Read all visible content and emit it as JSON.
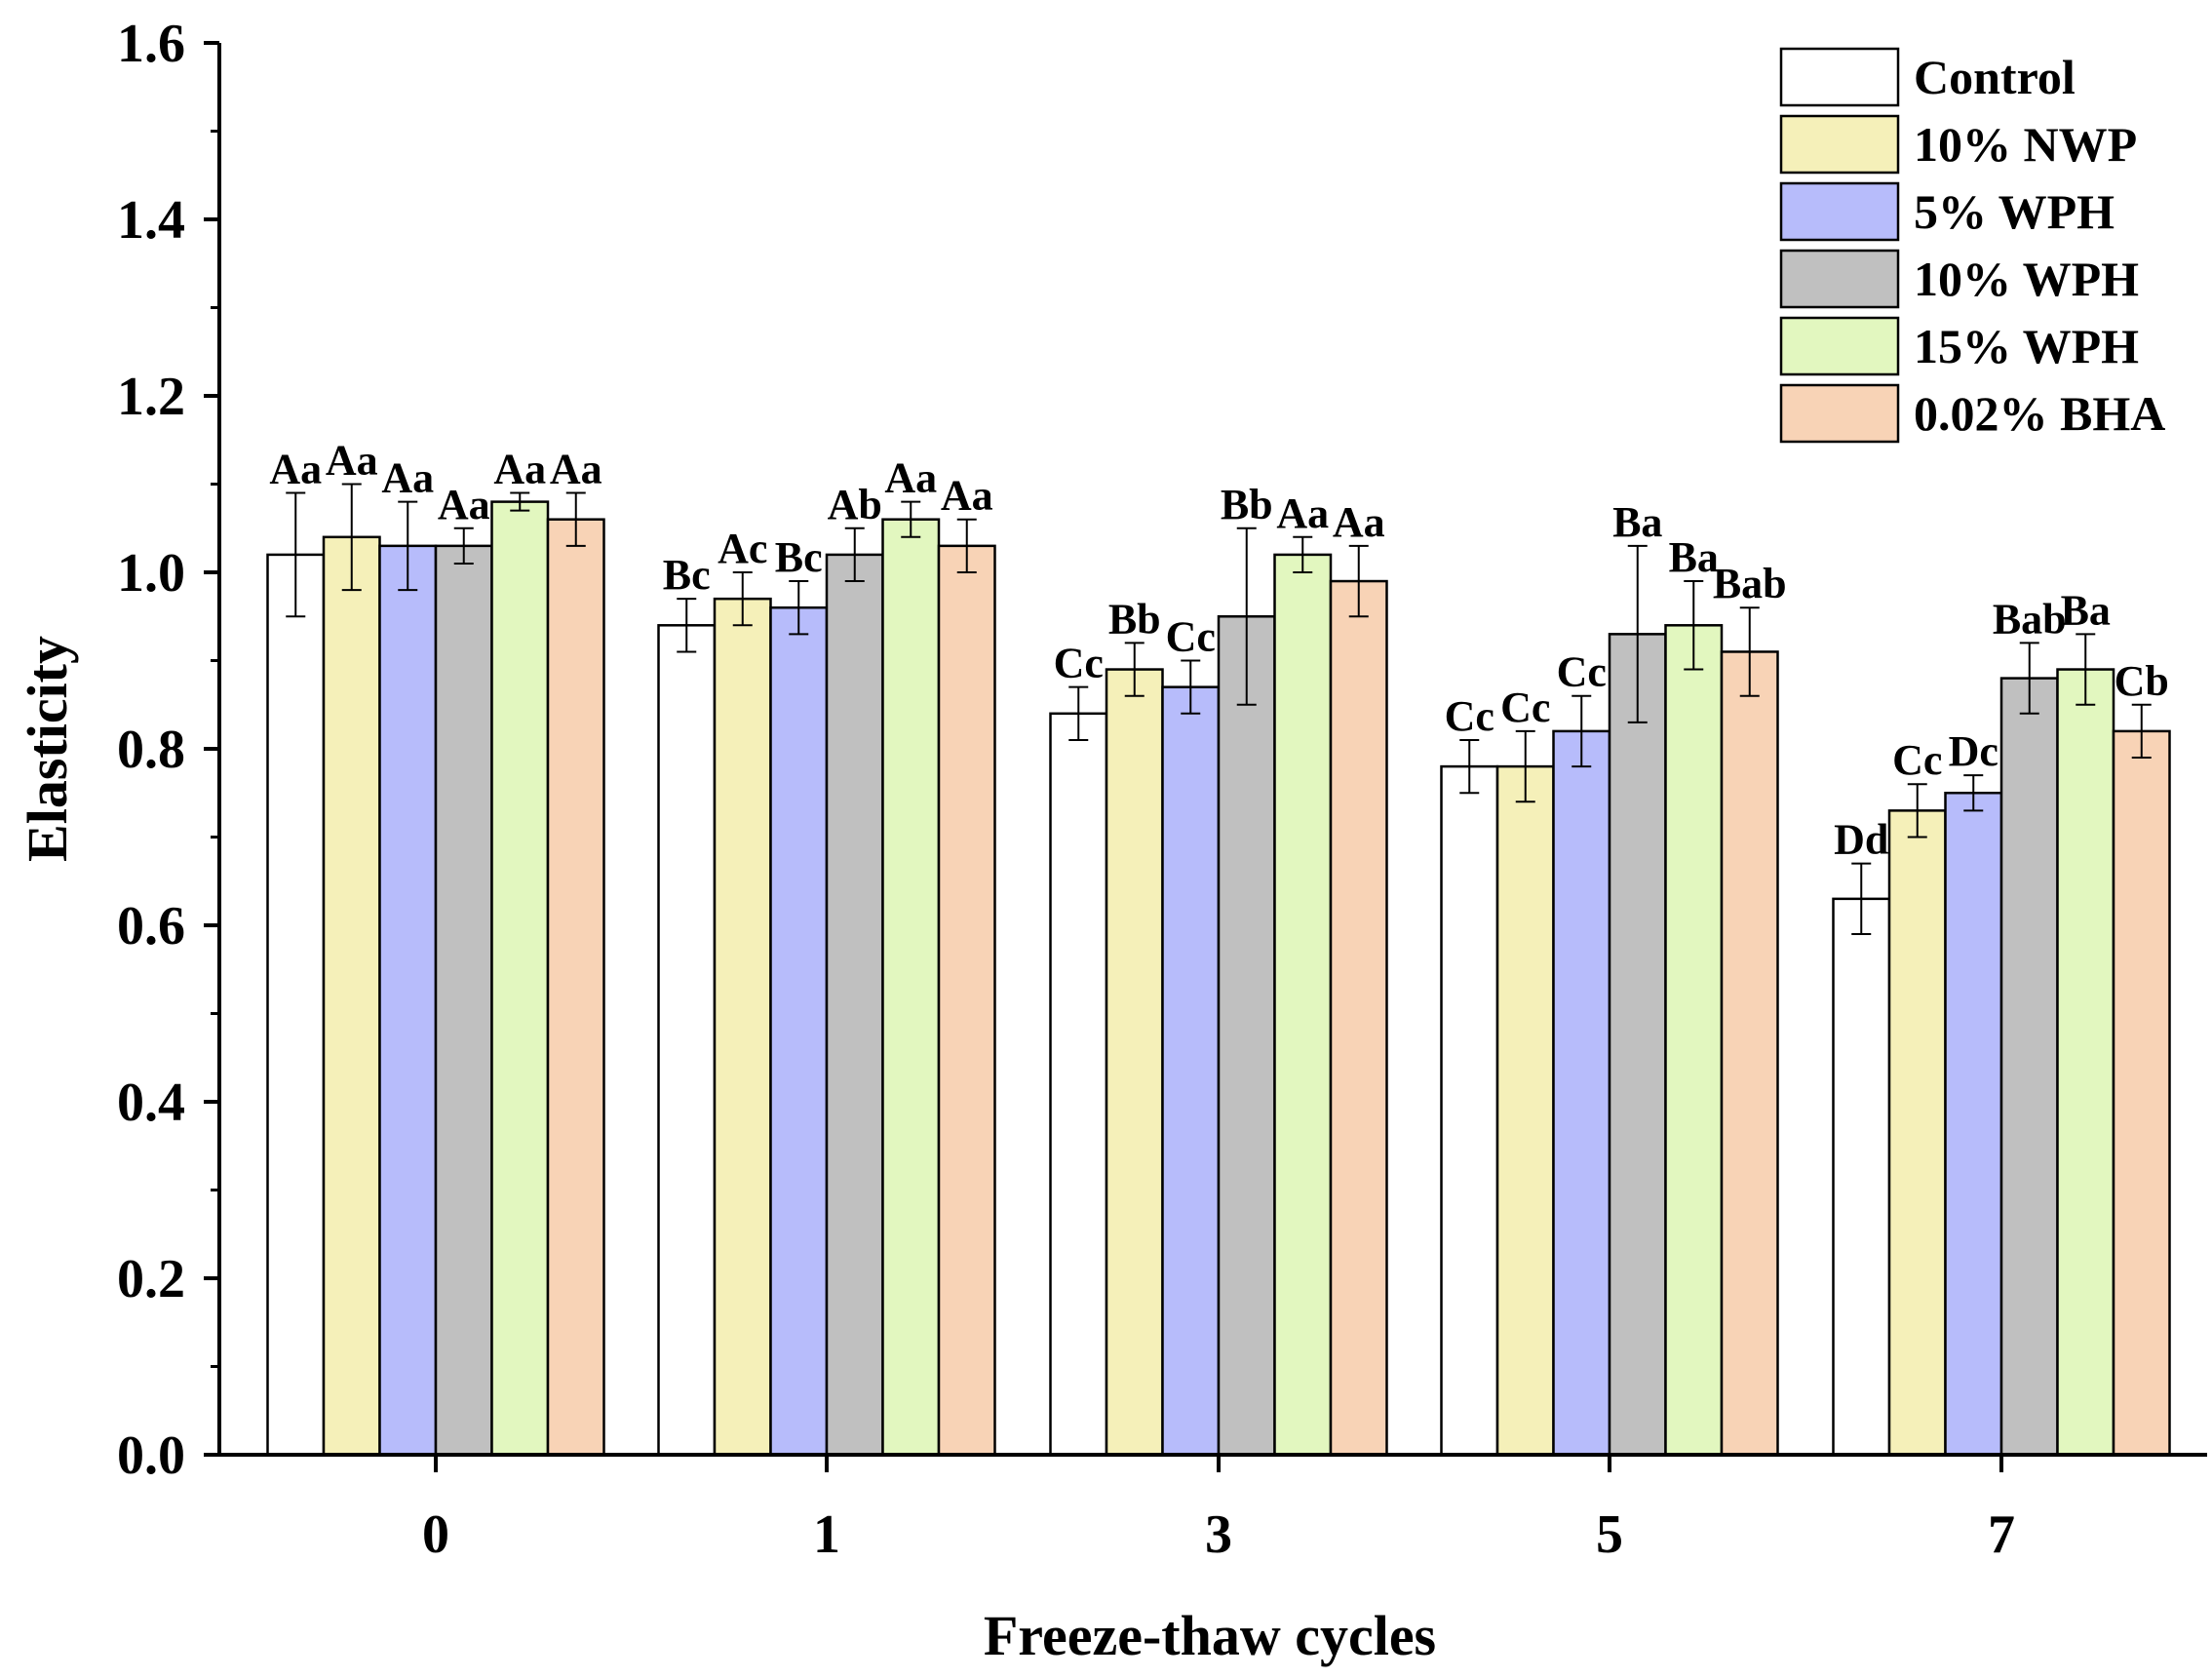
{
  "chart_data": {
    "type": "bar",
    "title": "",
    "xlabel": "Freeze-thaw cycles",
    "ylabel": "Elasticity",
    "ylim": [
      0,
      1.6
    ],
    "yticks": [
      "0.0",
      "0.2",
      "0.4",
      "0.6",
      "0.8",
      "1.0",
      "1.2",
      "1.4",
      "1.6"
    ],
    "categories": [
      "0",
      "1",
      "3",
      "5",
      "7"
    ],
    "legend_position": "top-right",
    "series": [
      {
        "name": "Control",
        "color": "#ffffff",
        "values": [
          1.02,
          0.94,
          0.84,
          0.78,
          0.63
        ],
        "errors": [
          0.07,
          0.03,
          0.03,
          0.03,
          0.04
        ],
        "labels": [
          "Aa",
          "Bc",
          "Cc",
          "Cc",
          "Dd"
        ]
      },
      {
        "name": "10% NWP",
        "color": "#f5f0b9",
        "values": [
          1.04,
          0.97,
          0.89,
          0.78,
          0.73
        ],
        "errors": [
          0.06,
          0.03,
          0.03,
          0.04,
          0.03
        ],
        "labels": [
          "Aa",
          "Ac",
          "Bb",
          "Cc",
          "Cc"
        ]
      },
      {
        "name": "5% WPH",
        "color": "#b7bcfb",
        "values": [
          1.03,
          0.96,
          0.87,
          0.82,
          0.75
        ],
        "errors": [
          0.05,
          0.03,
          0.03,
          0.04,
          0.02
        ],
        "labels": [
          "Aa",
          "Bc",
          "Cc",
          "Cc",
          "Dc"
        ]
      },
      {
        "name": "10% WPH",
        "color": "#c0c0c0",
        "values": [
          1.03,
          1.02,
          0.95,
          0.93,
          0.88
        ],
        "errors": [
          0.02,
          0.03,
          0.1,
          0.1,
          0.04
        ],
        "labels": [
          "Aa",
          "Ab",
          "Bb",
          "Ba",
          "Bab"
        ]
      },
      {
        "name": "15% WPH",
        "color": "#e2f7bf",
        "values": [
          1.08,
          1.06,
          1.02,
          0.94,
          0.89
        ],
        "errors": [
          0.01,
          0.02,
          0.02,
          0.05,
          0.04
        ],
        "labels": [
          "Aa",
          "Aa",
          "Aa",
          "Ba",
          "Ba"
        ]
      },
      {
        "name": "0.02% BHA",
        "color": "#f8d3b6",
        "values": [
          1.06,
          1.03,
          0.99,
          0.91,
          0.82
        ],
        "errors": [
          0.03,
          0.03,
          0.04,
          0.05,
          0.03
        ],
        "labels": [
          "Aa",
          "Aa",
          "Aa",
          "Bab",
          "Cb"
        ]
      }
    ]
  }
}
